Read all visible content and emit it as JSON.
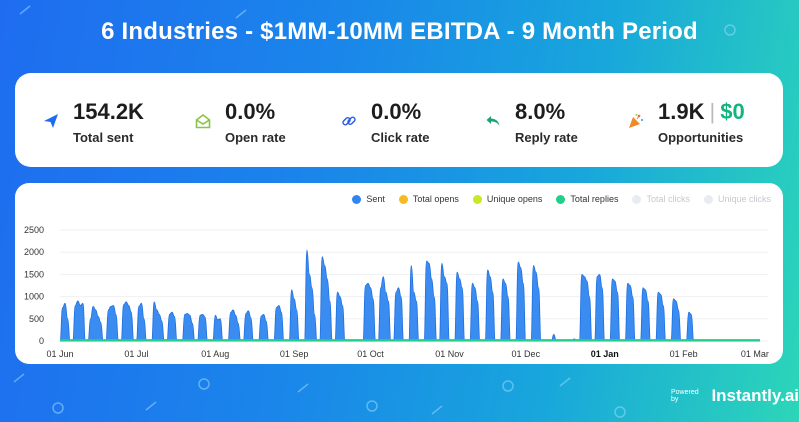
{
  "title": "6 Industries - $1MM-10MM EBITDA - 9 Month Period",
  "stats": [
    {
      "icon": "paper-plane-icon",
      "value": "154.2K",
      "label": "Total sent",
      "color": "#1f6cf0"
    },
    {
      "icon": "envelope-open-icon",
      "value": "0.0%",
      "label": "Open rate",
      "color": "#8bc34a"
    },
    {
      "icon": "link-icon",
      "value": "0.0%",
      "label": "Click rate",
      "color": "#2f5fe0"
    },
    {
      "icon": "reply-icon",
      "value": "8.0%",
      "label": "Reply rate",
      "color": "#1aa37a"
    },
    {
      "icon": "party-popper-icon",
      "value": "1.9K",
      "value2": "$0",
      "label": "Opportunities",
      "color": "#f08a24"
    }
  ],
  "legend": [
    {
      "name": "Sent",
      "color": "#2f86f0",
      "active": true
    },
    {
      "name": "Total opens",
      "color": "#f7b924",
      "active": true
    },
    {
      "name": "Unique opens",
      "color": "#c9e627",
      "active": true
    },
    {
      "name": "Total replies",
      "color": "#1fcf8a",
      "active": true
    },
    {
      "name": "Total clicks",
      "color": "#e8ecf0",
      "active": false
    },
    {
      "name": "Unique clicks",
      "color": "#e8ecf0",
      "active": false
    }
  ],
  "powered": {
    "prefix": "Powered by",
    "brand": "Instantly.ai"
  },
  "chart_data": {
    "type": "area",
    "title": "",
    "xlabel": "",
    "ylabel": "",
    "ylim": [
      0,
      2500
    ],
    "yticks": [
      0,
      500,
      1000,
      1500,
      2000,
      2500
    ],
    "xticks": [
      {
        "label": "01 Jun",
        "day": 0,
        "bold": false
      },
      {
        "label": "01 Jul",
        "day": 30,
        "bold": false
      },
      {
        "label": "01 Aug",
        "day": 61,
        "bold": false
      },
      {
        "label": "01 Sep",
        "day": 92,
        "bold": false
      },
      {
        "label": "01 Oct",
        "day": 122,
        "bold": false
      },
      {
        "label": "01 Nov",
        "day": 153,
        "bold": false
      },
      {
        "label": "01 Dec",
        "day": 183,
        "bold": false
      },
      {
        "label": "01 Jan",
        "day": 214,
        "bold": true
      },
      {
        "label": "01 Feb",
        "day": 245,
        "bold": false
      },
      {
        "label": "01 Mar",
        "day": 273,
        "bold": false
      }
    ],
    "days": 276,
    "series": [
      {
        "name": "Sent",
        "color": "#2f86f0",
        "values": [
          0,
          750,
          850,
          500,
          0,
          0,
          800,
          900,
          800,
          850,
          0,
          0,
          500,
          780,
          700,
          550,
          420,
          0,
          0,
          700,
          780,
          800,
          600,
          0,
          0,
          820,
          880,
          800,
          650,
          0,
          0,
          780,
          850,
          500,
          0,
          0,
          0,
          880,
          700,
          600,
          450,
          0,
          0,
          600,
          650,
          550,
          0,
          0,
          0,
          600,
          620,
          580,
          400,
          0,
          0,
          580,
          600,
          540,
          0,
          0,
          0,
          580,
          480,
          500,
          0,
          0,
          0,
          640,
          700,
          580,
          400,
          0,
          0,
          620,
          680,
          520,
          0,
          0,
          0,
          560,
          600,
          450,
          0,
          0,
          0,
          750,
          800,
          650,
          0,
          0,
          0,
          1150,
          950,
          700,
          0,
          0,
          0,
          2050,
          1500,
          1200,
          600,
          0,
          0,
          1900,
          1700,
          1400,
          900,
          0,
          0,
          1100,
          1000,
          800,
          0,
          0,
          0,
          0,
          0,
          0,
          0,
          0,
          1250,
          1300,
          1200,
          950,
          0,
          0,
          1200,
          1450,
          1100,
          900,
          0,
          0,
          1100,
          1200,
          1000,
          0,
          0,
          0,
          1700,
          1100,
          900,
          0,
          0,
          0,
          1800,
          1750,
          1400,
          1000,
          0,
          0,
          1750,
          1450,
          1300,
          0,
          0,
          0,
          1550,
          1400,
          1200,
          0,
          0,
          0,
          1300,
          1200,
          900,
          0,
          0,
          0,
          1600,
          1450,
          1100,
          0,
          0,
          0,
          1400,
          1300,
          1000,
          0,
          0,
          0,
          1780,
          1650,
          1300,
          0,
          0,
          0,
          1700,
          1550,
          1200,
          0,
          0,
          0,
          0,
          0,
          150,
          0,
          0,
          0,
          0,
          0,
          0,
          0,
          50,
          0,
          0,
          1500,
          1450,
          1350,
          1000,
          0,
          0,
          1450,
          1500,
          1200,
          0,
          0,
          0,
          1400,
          1350,
          1100,
          0,
          0,
          0,
          1300,
          1250,
          1000,
          0,
          0,
          0,
          1200,
          1150,
          900,
          0,
          0,
          0,
          1100,
          1050,
          800,
          0,
          0,
          0,
          950,
          900,
          700,
          0,
          0,
          0,
          650,
          600,
          0,
          0
        ]
      },
      {
        "name": "Total opens",
        "color": "#f7b924",
        "constant": 0
      },
      {
        "name": "Unique opens",
        "color": "#c9e627",
        "constant": 0
      },
      {
        "name": "Total replies",
        "color": "#1fcf8a",
        "constant": 20
      }
    ]
  }
}
